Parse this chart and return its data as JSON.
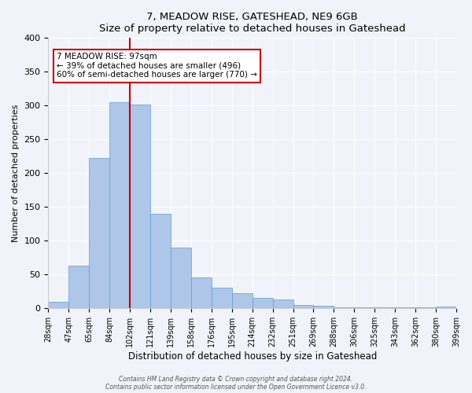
{
  "title": "7, MEADOW RISE, GATESHEAD, NE9 6GB",
  "subtitle": "Size of property relative to detached houses in Gateshead",
  "xlabel": "Distribution of detached houses by size in Gateshead",
  "ylabel": "Number of detached properties",
  "bar_color": "#aec6e8",
  "bar_edge_color": "#5a9fd4",
  "background_color": "#f0f4fa",
  "tick_labels": [
    "28sqm",
    "47sqm",
    "65sqm",
    "84sqm",
    "102sqm",
    "121sqm",
    "139sqm",
    "158sqm",
    "176sqm",
    "195sqm",
    "214sqm",
    "232sqm",
    "251sqm",
    "269sqm",
    "288sqm",
    "306sqm",
    "325sqm",
    "343sqm",
    "362sqm",
    "380sqm",
    "399sqm"
  ],
  "bar_values": [
    10,
    63,
    222,
    305,
    302,
    140,
    90,
    46,
    31,
    23,
    16,
    13,
    5,
    4,
    2,
    2,
    1,
    1,
    1,
    3
  ],
  "ylim": [
    0,
    400
  ],
  "yticks": [
    0,
    50,
    100,
    150,
    200,
    250,
    300,
    350,
    400
  ],
  "property_line_x": 4,
  "property_line_label": "7 MEADOW RISE: 97sqm",
  "annotation_line1": "← 39% of detached houses are smaller (496)",
  "annotation_line2": "60% of semi-detached houses are larger (770) →",
  "annotation_box_color": "#ffffff",
  "annotation_border_color": "#cc0000",
  "vline_color": "#cc0000",
  "footer_line1": "Contains HM Land Registry data © Crown copyright and database right 2024.",
  "footer_line2": "Contains public sector information licensed under the Open Government Licence v3.0."
}
